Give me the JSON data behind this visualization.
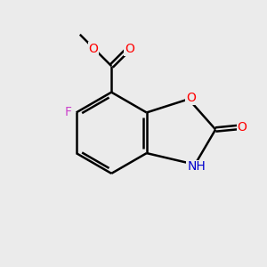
{
  "background_color": "#ebebeb",
  "bond_color": "#000000",
  "atom_colors": {
    "O": "#ff0000",
    "N": "#0000cd",
    "F": "#cc44cc",
    "C": "#000000"
  },
  "figsize": [
    3.0,
    3.0
  ],
  "dpi": 100
}
